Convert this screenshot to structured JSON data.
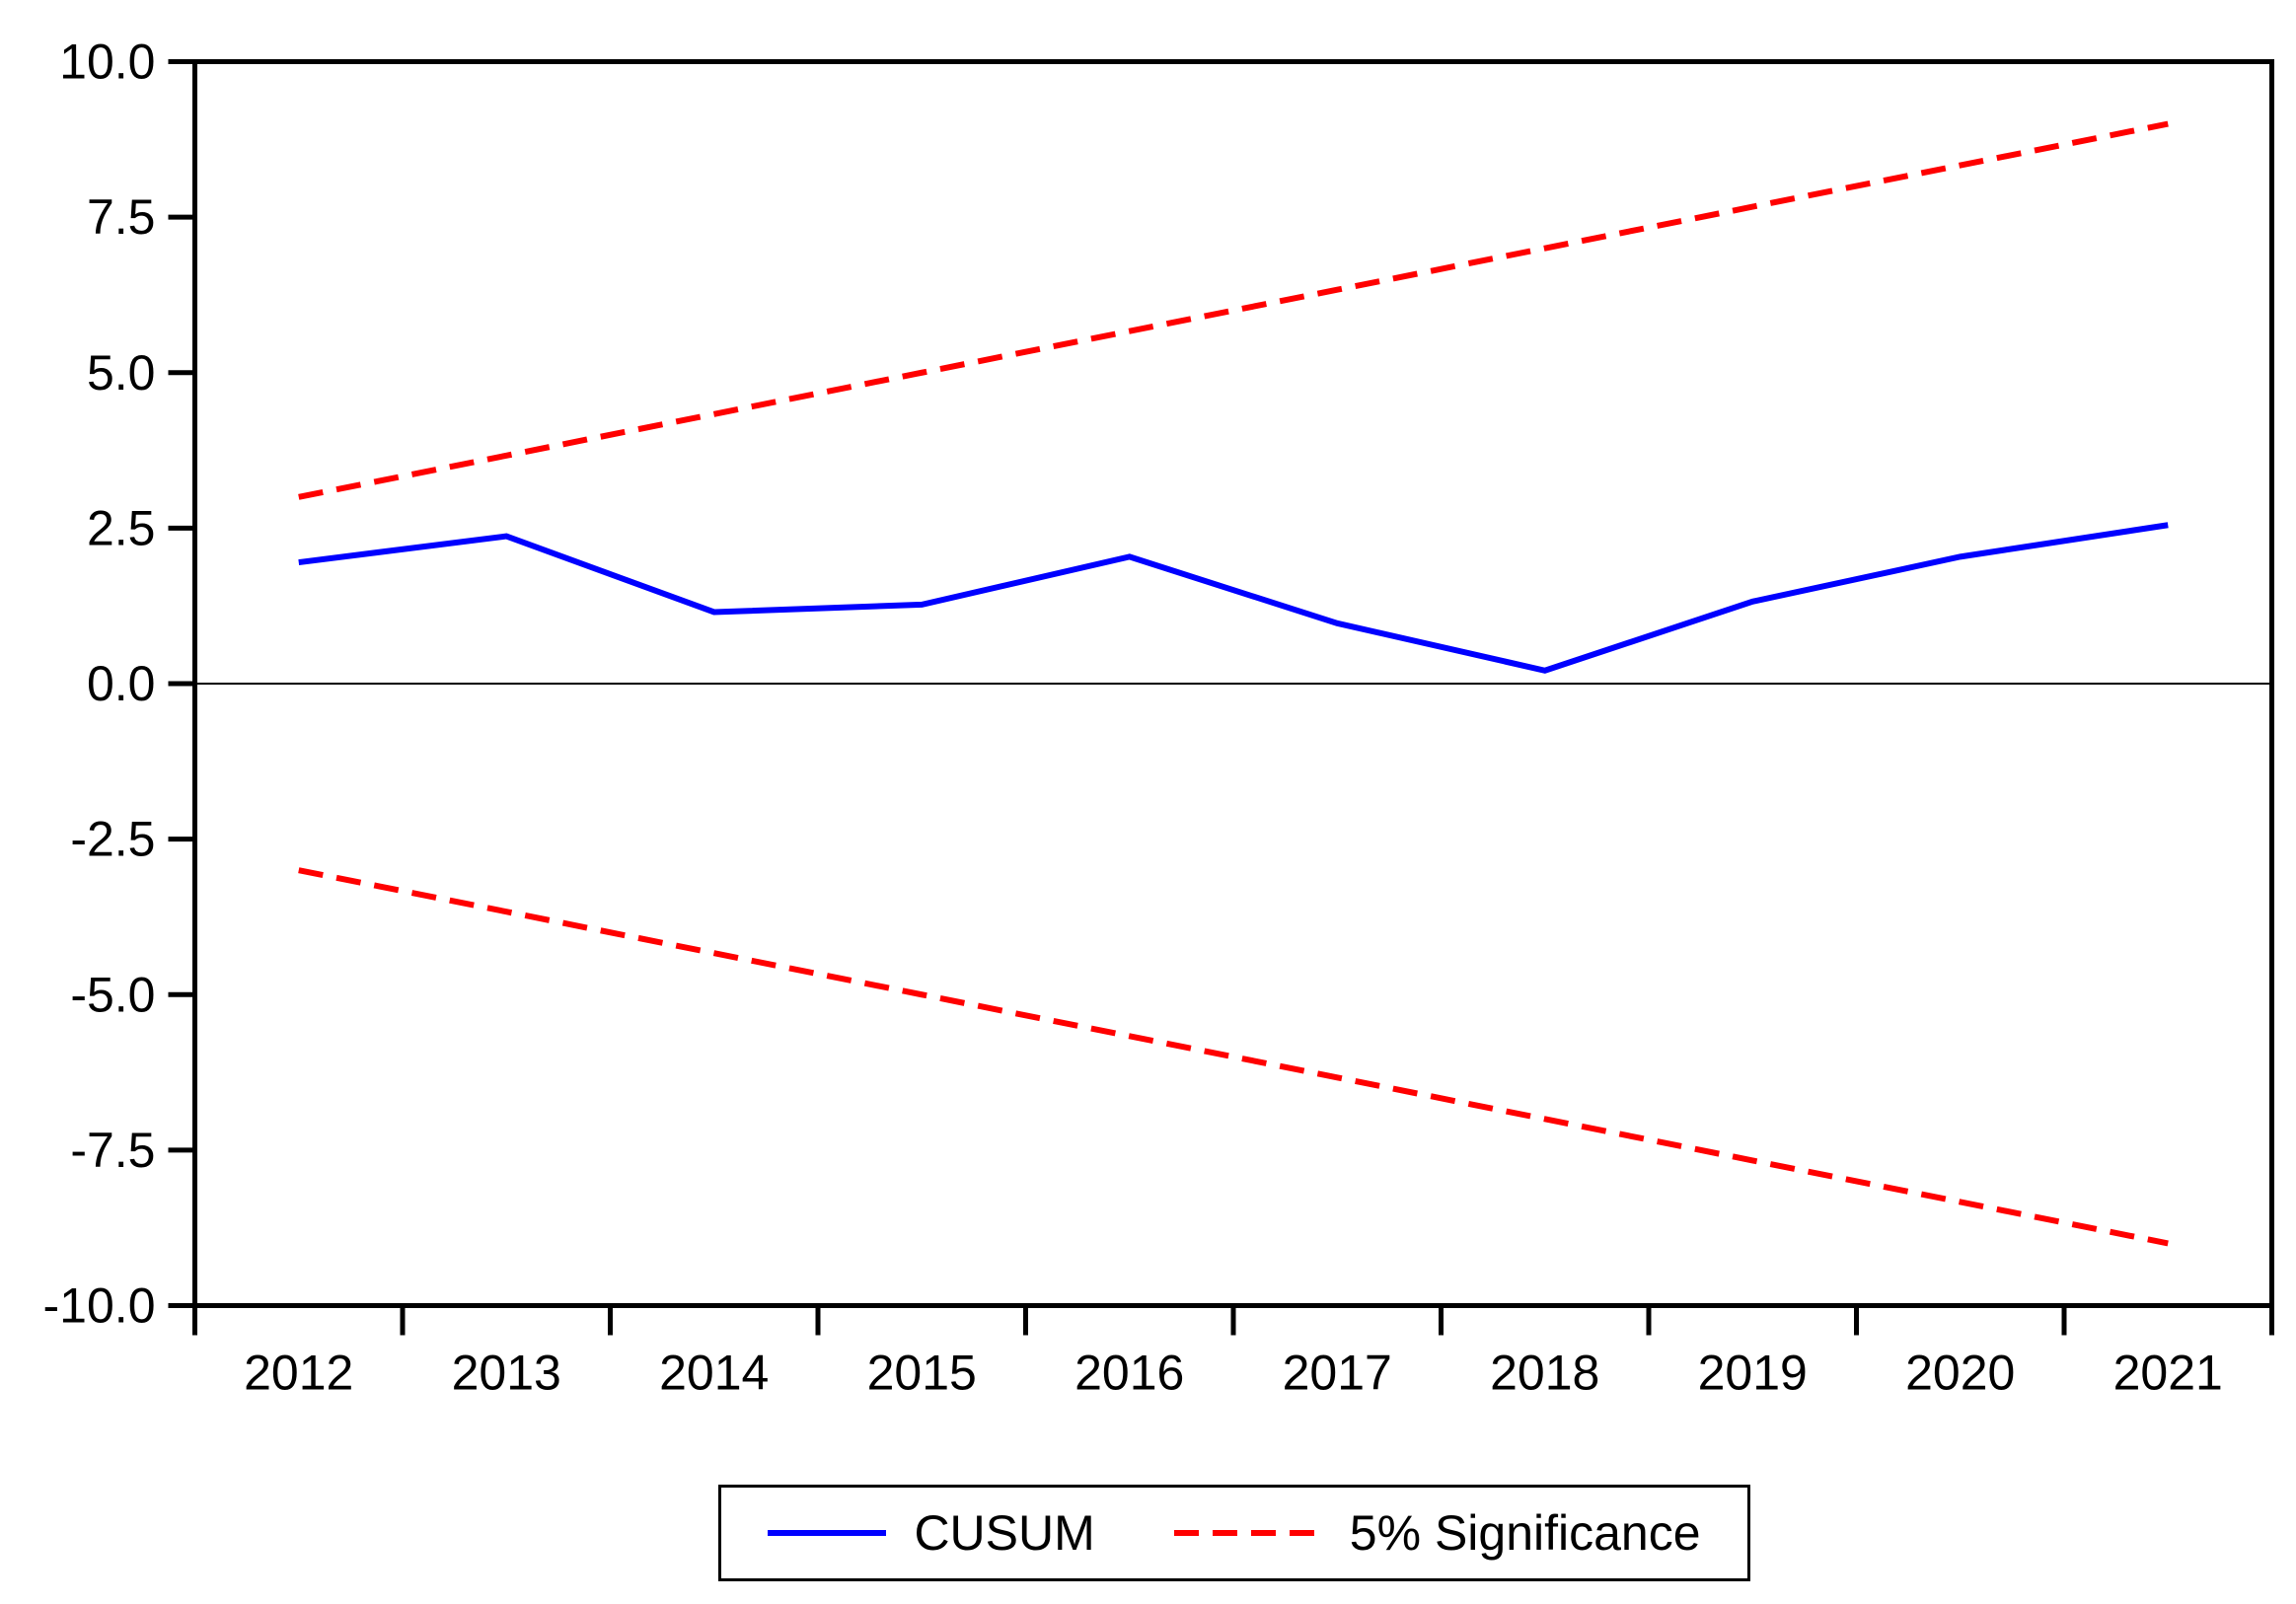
{
  "colors": {
    "cusum": "#0000ff",
    "significance": "#ff0000",
    "axis": "#000000",
    "background": "#ffffff"
  },
  "chart_data": {
    "type": "line",
    "title": "",
    "xlabel": "",
    "ylabel": "",
    "x_labels": [
      "2012",
      "2013",
      "2014",
      "2015",
      "2016",
      "2017",
      "2018",
      "2019",
      "2020",
      "2021"
    ],
    "ylim": [
      -10,
      10
    ],
    "yticks": [
      10,
      7.5,
      5,
      2.5,
      0,
      -2.5,
      -5,
      -7.5,
      -10
    ],
    "ytick_labels": [
      "10.0",
      "7.5",
      "5.0",
      "2.5",
      "0.0",
      "-2.5",
      "-5.0",
      "-7.5",
      "-10.0"
    ],
    "grid": false,
    "zero_line": true,
    "legend_position": "bottom",
    "series": [
      {
        "name": "CUSUM",
        "color": "#0000ff",
        "dashed": false,
        "values": [
          1.95,
          2.37,
          1.15,
          1.27,
          2.04,
          0.97,
          0.21,
          1.32,
          2.04,
          2.55
        ]
      },
      {
        "name": "5% Significance upper bound",
        "color": "#ff0000",
        "dashed": true,
        "values": [
          3.0,
          3.667,
          4.333,
          5.0,
          5.667,
          6.333,
          7.0,
          7.667,
          8.333,
          9.0
        ]
      },
      {
        "name": "5% Significance lower bound",
        "color": "#ff0000",
        "dashed": true,
        "values": [
          -3.0,
          -3.667,
          -4.333,
          -5.0,
          -5.667,
          -6.333,
          -7.0,
          -7.667,
          -8.333,
          -9.0
        ]
      }
    ],
    "legend": [
      {
        "label": "CUSUM"
      },
      {
        "label": "5% Significance"
      }
    ]
  }
}
